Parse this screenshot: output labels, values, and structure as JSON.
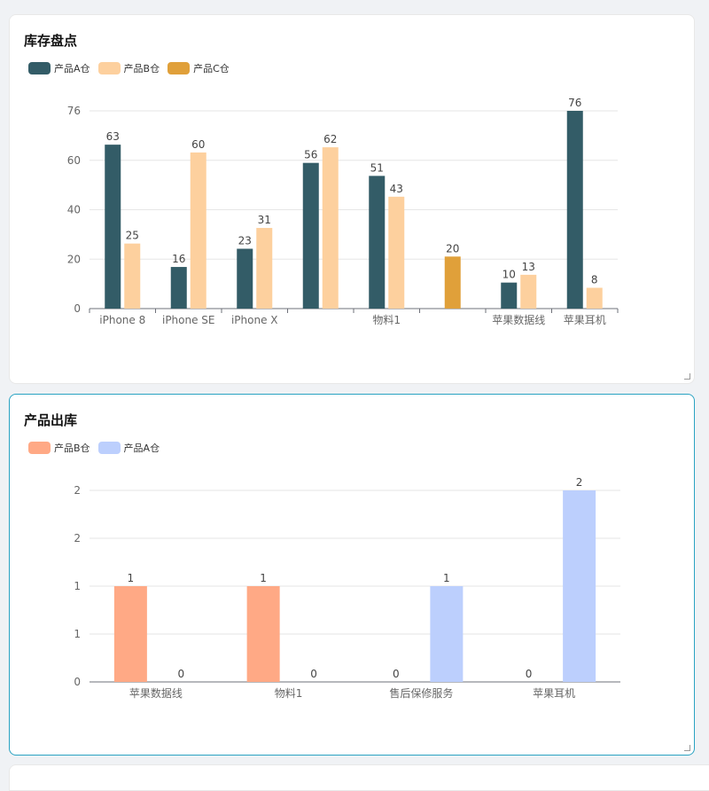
{
  "cards": [
    {
      "title": "库存盘点",
      "chart_data": {
        "type": "bar",
        "categories": [
          "iPhone 8",
          "iPhone SE",
          "iPhone X",
          "",
          "物料1",
          "",
          "苹果数据线",
          "苹果耳机"
        ],
        "series": [
          {
            "name": "产品A仓",
            "color": "#335c67",
            "values": [
              63,
              16,
              23,
              56,
              51,
              null,
              10,
              76
            ]
          },
          {
            "name": "产品B仓",
            "color": "#fdd09e",
            "values": [
              25,
              60,
              31,
              62,
              43,
              null,
              13,
              8
            ]
          },
          {
            "name": "产品C仓",
            "color": "#e0a03a",
            "values": [
              null,
              null,
              null,
              null,
              null,
              20,
              null,
              null
            ]
          }
        ],
        "y_ticks": [
          "0",
          "20",
          "40",
          "60",
          "76"
        ],
        "ylim": [
          0,
          76
        ],
        "legend_position": "top-left",
        "grid": true
      }
    },
    {
      "title": "产品出库",
      "chart_data": {
        "type": "bar",
        "categories": [
          "苹果数据线",
          "物料1",
          "售后保修服务",
          "苹果耳机"
        ],
        "series": [
          {
            "name": "产品B仓",
            "color": "#ffa985",
            "values": [
              1,
              1,
              0,
              0
            ]
          },
          {
            "name": "产品A仓",
            "color": "#bccffd",
            "values": [
              0,
              0,
              1,
              2
            ]
          }
        ],
        "y_ticks": [
          "0",
          "1",
          "1",
          "2",
          "2"
        ],
        "ylim": [
          0,
          2
        ],
        "legend_position": "top-left",
        "grid": true
      }
    }
  ]
}
